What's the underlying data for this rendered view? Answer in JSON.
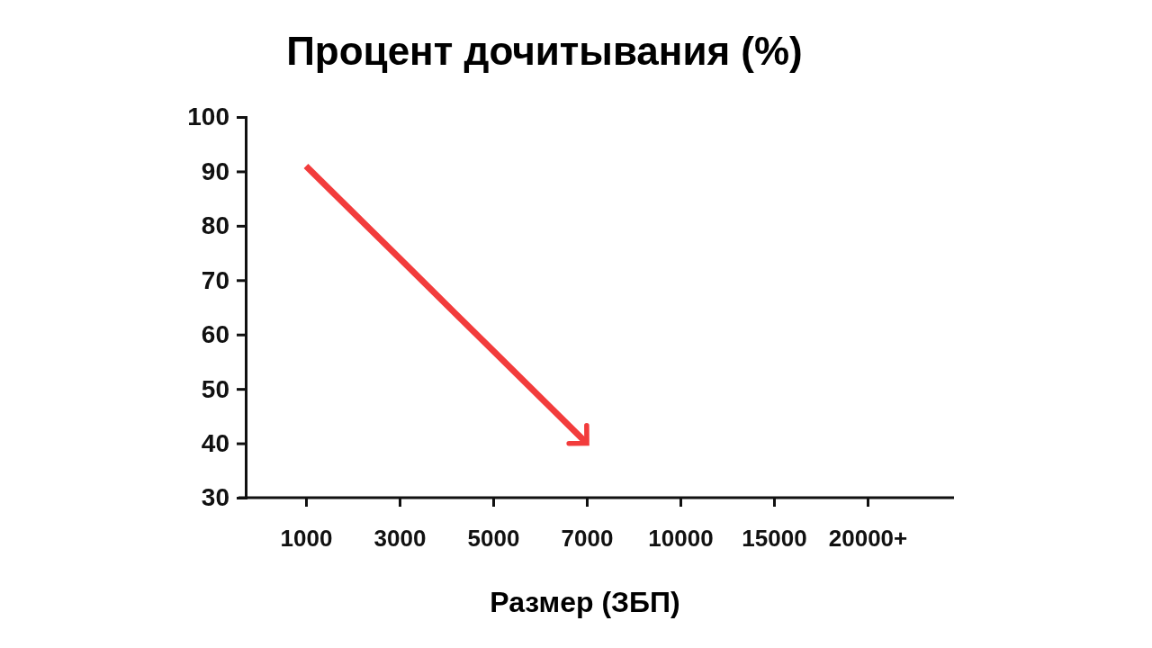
{
  "chart_data": {
    "type": "line",
    "title": "Процент дочитывания (%)",
    "xlabel": "Размер (ЗБП)",
    "categories": [
      "1000",
      "3000",
      "5000",
      "7000",
      "10000",
      "15000",
      "20000+"
    ],
    "series": [
      {
        "color": "#f23c3c",
        "values": [
          91,
          74,
          57,
          40,
          null,
          null,
          null
        ]
      }
    ],
    "ylim": [
      30,
      100
    ],
    "yticks": [
      30,
      40,
      50,
      60,
      70,
      80,
      90,
      100
    ],
    "marker": "none",
    "line_style": "solid"
  }
}
